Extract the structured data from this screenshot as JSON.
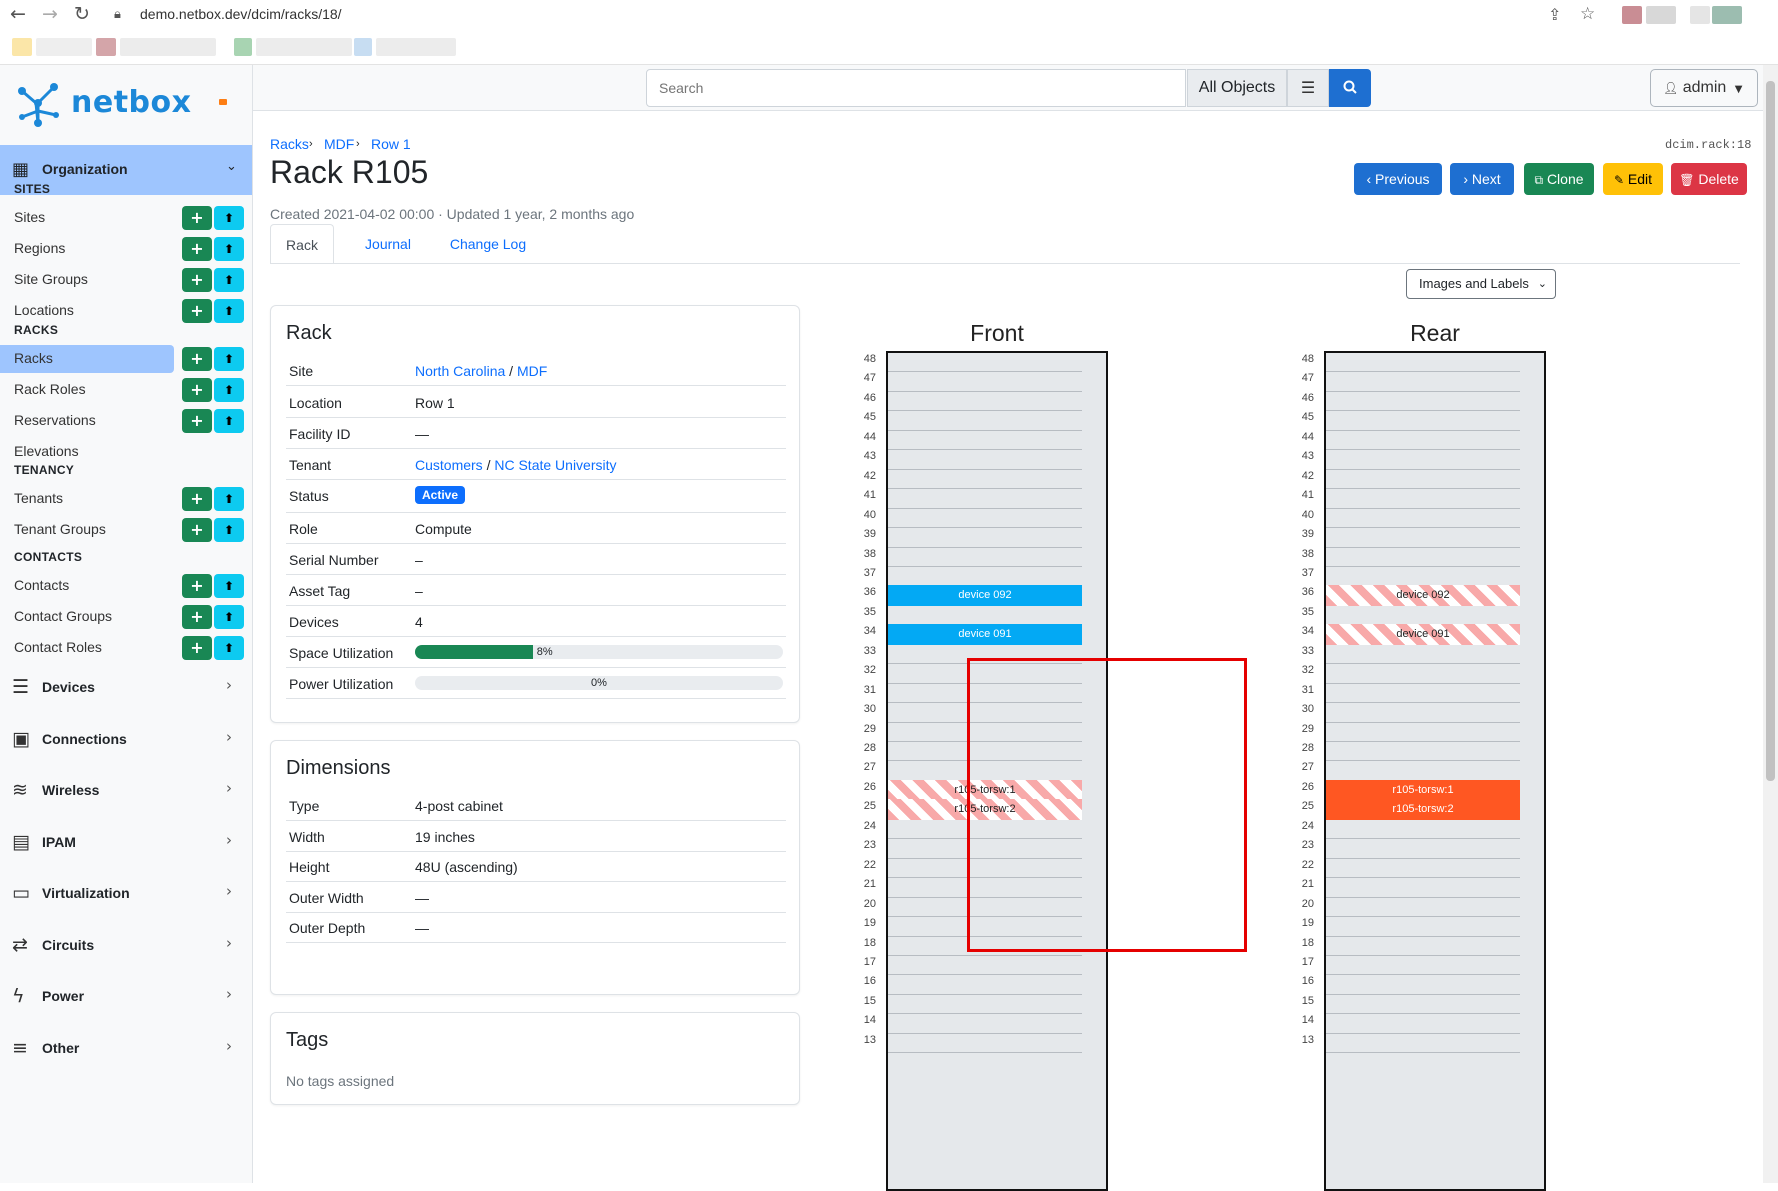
{
  "browser": {
    "url": "demo.netbox.dev/dcim/racks/18/"
  },
  "brand": {
    "name": "netbox"
  },
  "header": {
    "search_placeholder": "Search",
    "scope": "All Objects",
    "user": "admin"
  },
  "sidebar": {
    "organization_label": "Organization",
    "sections": [
      {
        "title": "SITES",
        "items": [
          {
            "label": "Sites",
            "buttons": true
          },
          {
            "label": "Regions",
            "buttons": true
          },
          {
            "label": "Site Groups",
            "buttons": true
          },
          {
            "label": "Locations",
            "buttons": true
          }
        ]
      },
      {
        "title": "RACKS",
        "items": [
          {
            "label": "Racks",
            "buttons": true,
            "active": true
          },
          {
            "label": "Rack Roles",
            "buttons": true
          },
          {
            "label": "Reservations",
            "buttons": true
          },
          {
            "label": "Elevations",
            "buttons": false
          }
        ]
      },
      {
        "title": "TENANCY",
        "items": [
          {
            "label": "Tenants",
            "buttons": true
          },
          {
            "label": "Tenant Groups",
            "buttons": true
          }
        ]
      },
      {
        "title": "CONTACTS",
        "items": [
          {
            "label": "Contacts",
            "buttons": true
          },
          {
            "label": "Contact Groups",
            "buttons": true
          },
          {
            "label": "Contact Roles",
            "buttons": true
          }
        ]
      }
    ],
    "groups": [
      {
        "label": "Devices",
        "icon": "server-icon"
      },
      {
        "label": "Connections",
        "icon": "ethernet-icon"
      },
      {
        "label": "Wireless",
        "icon": "wifi-icon"
      },
      {
        "label": "IPAM",
        "icon": "counter-icon"
      },
      {
        "label": "Virtualization",
        "icon": "monitor-icon"
      },
      {
        "label": "Circuits",
        "icon": "transit-icon"
      },
      {
        "label": "Power",
        "icon": "flash-icon"
      },
      {
        "label": "Other",
        "icon": "notes-icon"
      }
    ]
  },
  "breadcrumbs": [
    "Racks",
    "MDF",
    "Row 1"
  ],
  "page": {
    "title": "Rack R105",
    "meta": "Created 2021-04-02 00:00 · Updated 1 year, 2 months ago",
    "object_id": "dcim.rack:18"
  },
  "actions": {
    "previous": "Previous",
    "next": "Next",
    "clone": "Clone",
    "edit": "Edit",
    "delete": "Delete"
  },
  "tabs": [
    "Rack",
    "Journal",
    "Change Log"
  ],
  "rack_card": {
    "title": "Rack",
    "site": [
      "North Carolina",
      "MDF"
    ],
    "location": "Row 1",
    "facility_id": "—",
    "tenant": [
      "Customers",
      "NC State University"
    ],
    "status": "Active",
    "role": "Compute",
    "serial_number": "–",
    "asset_tag": "–",
    "devices": "4",
    "space_utilization": {
      "label": "Space Utilization",
      "percent": 8,
      "text": "8%"
    },
    "power_utilization": {
      "label": "Power Utilization",
      "percent": 0,
      "text": "0%"
    },
    "labels": {
      "site": "Site",
      "location": "Location",
      "facility_id": "Facility ID",
      "tenant": "Tenant",
      "status": "Status",
      "role": "Role",
      "serial_number": "Serial Number",
      "asset_tag": "Asset Tag",
      "devices": "Devices"
    }
  },
  "dimensions_card": {
    "title": "Dimensions",
    "rows": [
      {
        "key": "Type",
        "value": "4-post cabinet"
      },
      {
        "key": "Width",
        "value": "19 inches"
      },
      {
        "key": "Height",
        "value": "48U (ascending)"
      },
      {
        "key": "Outer Width",
        "value": "—"
      },
      {
        "key": "Outer Depth",
        "value": "—"
      }
    ]
  },
  "tags_card": {
    "title": "Tags",
    "empty": "No tags assigned"
  },
  "elevation": {
    "view_select": "Images and Labels",
    "front_title": "Front",
    "rear_title": "Rear",
    "units_top": 48,
    "units_bottom": 13,
    "front_devices": [
      {
        "name": "device 092",
        "unit": 36,
        "style": "blue"
      },
      {
        "name": "device 091",
        "unit": 34,
        "style": "blue"
      },
      {
        "name": "r105-torsw:1",
        "unit": 26,
        "style": "stripe"
      },
      {
        "name": "r105-torsw:2",
        "unit": 25,
        "style": "stripe"
      }
    ],
    "rear_devices": [
      {
        "name": "device 092",
        "unit": 36,
        "style": "stripe"
      },
      {
        "name": "device 091",
        "unit": 34,
        "style": "stripe"
      },
      {
        "name": "r105-torsw:1",
        "unit": 26,
        "style": "orange"
      },
      {
        "name": "r105-torsw:2",
        "unit": 25,
        "style": "orange"
      }
    ]
  }
}
